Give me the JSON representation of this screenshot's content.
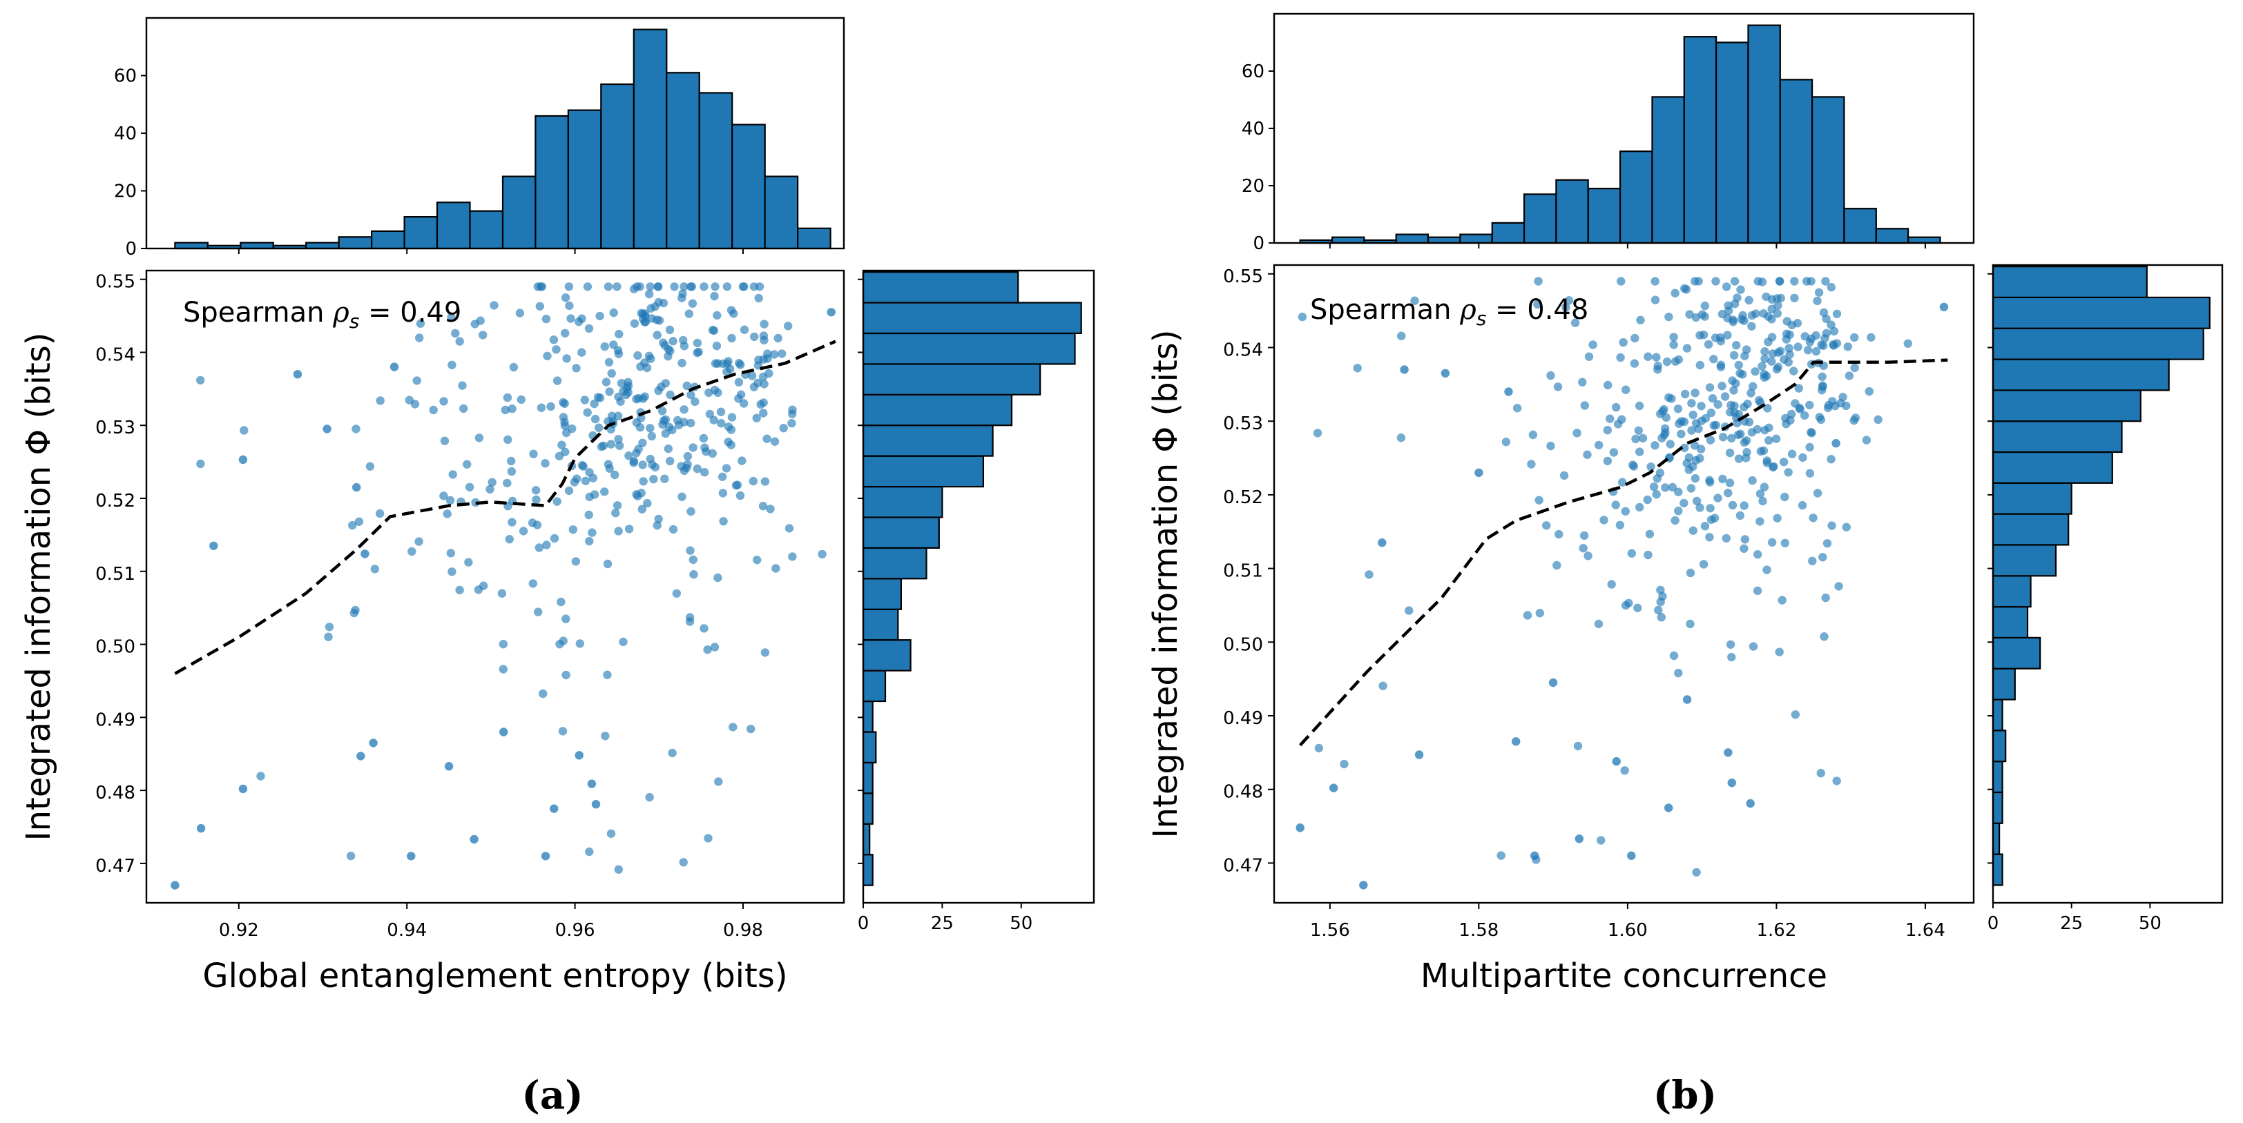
{
  "figure": {
    "colors": {
      "point": "#1f77b4",
      "bar": "#1f77b4",
      "bar_edge": "#000000",
      "trend": "#000000"
    }
  },
  "chart_data": [
    {
      "type": "scatter",
      "caption": "(a)",
      "xlabel": "Global entanglement entropy (bits)",
      "ylabel": "Integrated information Φ (bits)",
      "annotation_prefix": "Spearman ",
      "annotation_symbol": "ρ",
      "annotation_sub": "s",
      "annotation_value": " = 0.49",
      "xlim": [
        0.909,
        0.992
      ],
      "ylim": [
        0.4646,
        0.5512
      ],
      "xticks": [
        0.92,
        0.94,
        0.96,
        0.98
      ],
      "xtick_labels": [
        "0.92",
        "0.94",
        "0.96",
        "0.98"
      ],
      "yticks": [
        0.47,
        0.48,
        0.49,
        0.5,
        0.51,
        0.52,
        0.53,
        0.54,
        0.55
      ],
      "ytick_labels": [
        "0.47",
        "0.48",
        "0.49",
        "0.50",
        "0.51",
        "0.52",
        "0.53",
        "0.54",
        "0.55"
      ],
      "trend": {
        "x": [
          0.9124,
          0.92,
          0.928,
          0.934,
          0.938,
          0.945,
          0.95,
          0.9565,
          0.9585,
          0.96,
          0.964,
          0.969,
          0.974,
          0.979,
          0.985,
          0.991
        ],
        "y": [
          0.496,
          0.501,
          0.507,
          0.513,
          0.5175,
          0.519,
          0.5195,
          0.519,
          0.522,
          0.5255,
          0.53,
          0.532,
          0.535,
          0.537,
          0.5385,
          0.5415
        ]
      },
      "highlighted_points": {
        "x": [
          0.9124,
          0.917,
          0.9155,
          0.9205,
          0.9205,
          0.927,
          0.9305,
          0.934,
          0.935,
          0.9345,
          0.936,
          0.9385,
          0.9405,
          0.945,
          0.948,
          0.9515,
          0.9565,
          0.9575,
          0.9605,
          0.962,
          0.9625,
          0.9905
        ],
        "y": [
          0.467,
          0.5135,
          0.4748,
          0.5253,
          0.4802,
          0.537,
          0.5295,
          0.5215,
          0.5124,
          0.4847,
          0.4865,
          0.538,
          0.471,
          0.4833,
          0.4733,
          0.488,
          0.471,
          0.4775,
          0.4848,
          0.4809,
          0.4781,
          0.5455
        ]
      },
      "top_hist": {
        "bin_edges": [
          0.9124,
          0.9163,
          0.9202,
          0.9241,
          0.928,
          0.9319,
          0.9358,
          0.9397,
          0.9436,
          0.9475,
          0.9514,
          0.9553,
          0.9592,
          0.9631,
          0.967,
          0.9709,
          0.9748,
          0.9787,
          0.9826,
          0.9865,
          0.9904
        ],
        "counts": [
          2,
          1,
          2,
          1,
          2,
          4,
          6,
          11,
          16,
          13,
          25,
          46,
          48,
          57,
          76,
          61,
          54,
          43,
          25,
          7
        ],
        "ylim": [
          0,
          80
        ],
        "yticks": [
          0,
          20,
          40,
          60
        ],
        "ytick_labels": [
          "0",
          "20",
          "40",
          "60"
        ]
      },
      "right_hist": {
        "bin_edges": [
          0.467,
          0.4712,
          0.4754,
          0.4796,
          0.4838,
          0.488,
          0.4922,
          0.4964,
          0.5006,
          0.5048,
          0.509,
          0.5132,
          0.5174,
          0.5216,
          0.5258,
          0.53,
          0.5342,
          0.5384,
          0.5426,
          0.5468,
          0.551
        ],
        "counts": [
          3,
          2,
          3,
          3,
          4,
          3,
          7,
          15,
          11,
          12,
          20,
          24,
          25,
          38,
          41,
          47,
          56,
          67,
          69,
          49
        ],
        "xlim": [
          0,
          73
        ],
        "xticks": [
          0,
          25,
          50
        ],
        "xtick_labels": [
          "0",
          "25",
          "50"
        ]
      }
    },
    {
      "type": "scatter",
      "caption": "(b)",
      "xlabel": "Multipartite concurrence",
      "ylabel": "Integrated information Φ (bits)",
      "annotation_prefix": "Spearman ",
      "annotation_symbol": "ρ",
      "annotation_sub": "s",
      "annotation_value": " = 0.48",
      "xlim": [
        1.5525,
        1.6465
      ],
      "ylim": [
        0.4646,
        0.5512
      ],
      "xticks": [
        1.56,
        1.58,
        1.6,
        1.62,
        1.64
      ],
      "xtick_labels": [
        "1.56",
        "1.58",
        "1.60",
        "1.62",
        "1.64"
      ],
      "yticks": [
        0.47,
        0.48,
        0.49,
        0.5,
        0.51,
        0.52,
        0.53,
        0.54,
        0.55
      ],
      "ytick_labels": [
        "0.47",
        "0.48",
        "0.49",
        "0.50",
        "0.51",
        "0.52",
        "0.53",
        "0.54",
        "0.55"
      ],
      "trend": {
        "x": [
          1.556,
          1.565,
          1.575,
          1.581,
          1.585,
          1.592,
          1.599,
          1.603,
          1.608,
          1.613,
          1.618,
          1.6225,
          1.625,
          1.63,
          1.635,
          1.643
        ],
        "y": [
          0.486,
          0.496,
          0.506,
          0.514,
          0.5165,
          0.519,
          0.521,
          0.523,
          0.527,
          0.529,
          0.532,
          0.535,
          0.538,
          0.538,
          0.538,
          0.5383
        ]
      },
      "highlighted_points": {
        "x": [
          1.556,
          1.5605,
          1.5645,
          1.567,
          1.57,
          1.572,
          1.5755,
          1.58,
          1.584,
          1.585,
          1.5875,
          1.59,
          1.5935,
          1.5985,
          1.6005,
          1.6055,
          1.608,
          1.6135,
          1.614,
          1.6165,
          1.628,
          1.6425
        ],
        "y": [
          0.4748,
          0.4802,
          0.467,
          0.5135,
          0.537,
          0.4847,
          0.5365,
          0.523,
          0.534,
          0.4865,
          0.471,
          0.4945,
          0.4733,
          0.4838,
          0.471,
          0.4775,
          0.4922,
          0.485,
          0.4809,
          0.4781,
          0.527,
          0.5455
        ]
      },
      "top_hist": {
        "bin_edges": [
          1.556,
          1.5603,
          1.5646,
          1.5689,
          1.5732,
          1.5775,
          1.5818,
          1.5861,
          1.5904,
          1.5947,
          1.599,
          1.6033,
          1.6076,
          1.6119,
          1.6162,
          1.6205,
          1.6248,
          1.6291,
          1.6334,
          1.6377,
          1.642
        ],
        "counts": [
          1,
          2,
          1,
          3,
          2,
          3,
          7,
          17,
          22,
          19,
          32,
          51,
          72,
          70,
          76,
          57,
          51,
          12,
          5,
          2
        ],
        "ylim": [
          0,
          80
        ],
        "yticks": [
          0,
          20,
          40,
          60
        ],
        "ytick_labels": [
          "0",
          "20",
          "40",
          "60"
        ]
      },
      "right_hist": {
        "bin_edges": [
          0.467,
          0.4712,
          0.4754,
          0.4796,
          0.4838,
          0.488,
          0.4922,
          0.4964,
          0.5006,
          0.5048,
          0.509,
          0.5132,
          0.5174,
          0.5216,
          0.5258,
          0.53,
          0.5342,
          0.5384,
          0.5426,
          0.5468,
          0.551
        ],
        "counts": [
          3,
          2,
          3,
          3,
          4,
          3,
          7,
          15,
          11,
          12,
          20,
          24,
          25,
          38,
          41,
          47,
          56,
          67,
          69,
          49
        ],
        "xlim": [
          0,
          73
        ],
        "xticks": [
          0,
          25,
          50
        ],
        "xtick_labels": [
          "0",
          "25",
          "50"
        ]
      }
    }
  ]
}
